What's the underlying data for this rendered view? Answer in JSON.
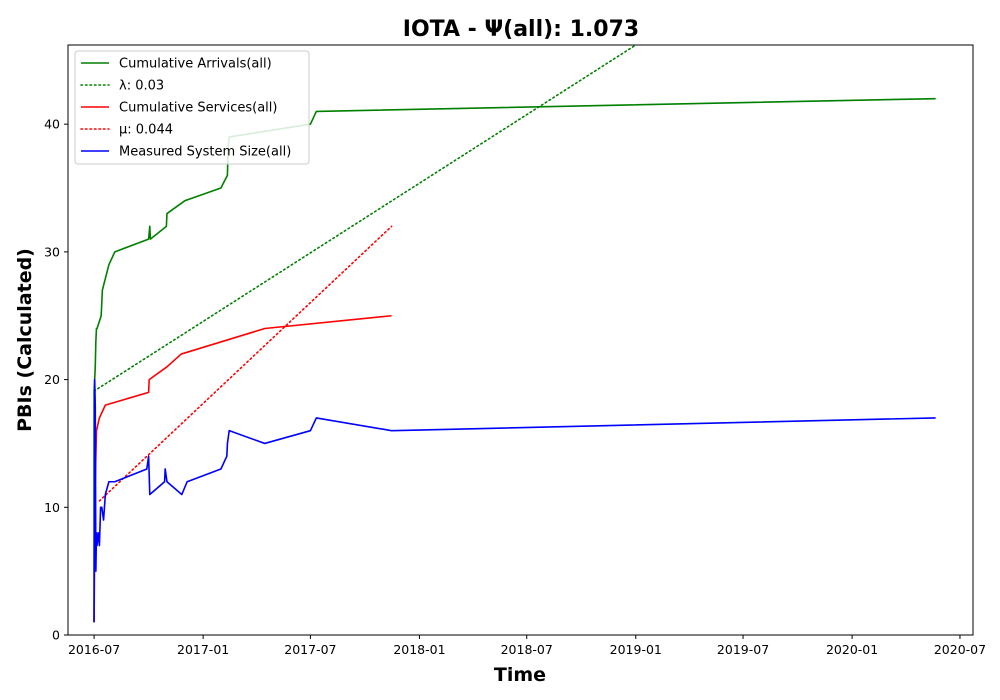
{
  "chart_data": {
    "type": "line",
    "title": "IOTA -  Ψ(all): 1.073",
    "xlabel": "Time",
    "ylabel": "PBIs (Calculated)",
    "xlim": [
      "2016-05-18",
      "2020-07-23"
    ],
    "ylim": [
      0,
      46.2
    ],
    "x_ticks": [
      "2016-07",
      "2017-01",
      "2017-07",
      "2018-01",
      "2018-07",
      "2019-01",
      "2019-07",
      "2020-01",
      "2020-07"
    ],
    "y_ticks": [
      0,
      10,
      20,
      30,
      40
    ],
    "grid": false,
    "legend_position": "top-left",
    "series": [
      {
        "name": "Cumulative Arrivals(all)",
        "color": "#008000",
        "style": "solid",
        "x": [
          "2016-07-01",
          "2016-07-01",
          "2016-07-02",
          "2016-07-03",
          "2016-07-04",
          "2016-07-05",
          "2016-07-06",
          "2016-07-13",
          "2016-07-15",
          "2016-07-26",
          "2016-08-05",
          "2016-10-01",
          "2016-10-03",
          "2016-10-04",
          "2016-10-31",
          "2016-11-01",
          "2016-12-01",
          "2017-01-31",
          "2017-02-11",
          "2017-02-12",
          "2017-02-14",
          "2017-07-01",
          "2017-07-11",
          "2020-05-21"
        ],
        "y": [
          1,
          19,
          20,
          21,
          23,
          24,
          24,
          25,
          27,
          29,
          30,
          31,
          32,
          31,
          32,
          33,
          34,
          35,
          36,
          38,
          39,
          40,
          41,
          42
        ]
      },
      {
        "name": "λ: 0.03",
        "color": "#008000",
        "style": "dotted",
        "x": [
          "2016-07-01",
          "2019-01-01"
        ],
        "y": [
          19.1,
          46.2
        ]
      },
      {
        "name": "Cumulative Services(all)",
        "color": "#ff0000",
        "style": "solid",
        "x": [
          "2016-07-01",
          "2016-07-03",
          "2016-07-05",
          "2016-07-10",
          "2016-07-20",
          "2016-10-01",
          "2016-10-02",
          "2016-11-01",
          "2016-11-25",
          "2017-04-15",
          "2017-11-15"
        ],
        "y": [
          1,
          12,
          16,
          17,
          18,
          19,
          20,
          21,
          22,
          24,
          25
        ]
      },
      {
        "name": "μ: 0.044",
        "color": "#ff0000",
        "style": "dotted",
        "x": [
          "2016-07-10",
          "2017-11-15"
        ],
        "y": [
          10.5,
          32
        ]
      },
      {
        "name": "Measured System Size(all)",
        "color": "#0000ff",
        "style": "solid",
        "x": [
          "2016-07-01",
          "2016-07-02",
          "2016-07-03",
          "2016-07-04",
          "2016-07-05",
          "2016-07-06",
          "2016-07-08",
          "2016-07-10",
          "2016-07-12",
          "2016-07-14",
          "2016-07-17",
          "2016-07-20",
          "2016-07-26",
          "2016-08-05",
          "2016-09-28",
          "2016-10-01",
          "2016-10-03",
          "2016-10-28",
          "2016-10-29",
          "2016-11-01",
          "2016-11-26",
          "2016-12-05",
          "2017-01-31",
          "2017-02-10",
          "2017-02-11",
          "2017-02-14",
          "2017-04-15",
          "2017-07-01",
          "2017-07-11",
          "2017-11-15",
          "2020-05-21"
        ],
        "y": [
          1,
          20,
          18,
          5,
          8,
          7,
          8,
          7,
          10,
          10,
          9,
          11,
          12,
          12,
          13,
          14,
          11,
          12,
          13,
          12,
          11,
          12,
          13,
          14,
          15,
          16,
          15,
          16,
          17,
          16,
          17
        ]
      }
    ]
  }
}
